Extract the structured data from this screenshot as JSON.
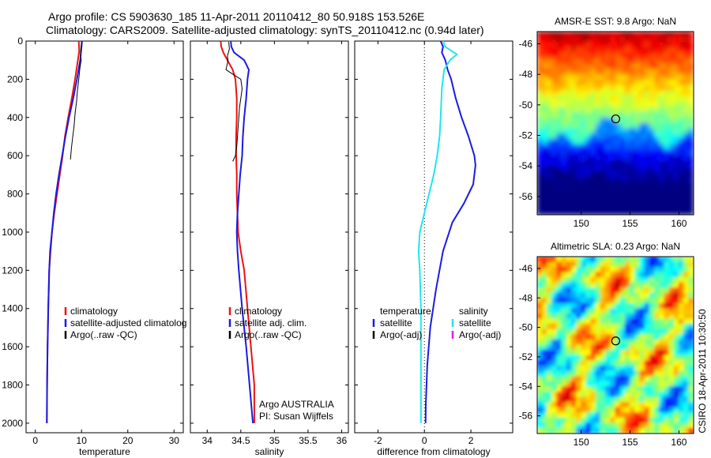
{
  "header": {
    "line1": "Argo profile: CS 5903630_185 11-Apr-2011 20110412_80 50.918S 153.526E",
    "line2": "Climatology: CARS2009. Satellite-adjusted climatology: synTS_20110412.nc (0.94d later)"
  },
  "side_label": "CSIRO 18-Apr-2011 10:30:50",
  "colors": {
    "red": "#ee1111",
    "blue": "#1a1ae6",
    "black": "#000000",
    "cyan": "#22e6e6",
    "magenta": "#e020e0"
  },
  "chart_data": [
    {
      "id": "temperature",
      "type": "line",
      "xlabel": "temperature",
      "ylabel": "",
      "xlim": [
        -2,
        32
      ],
      "ylim": [
        2050,
        0
      ],
      "xticks": [
        0,
        10,
        20,
        30
      ],
      "yticks": [
        0,
        200,
        400,
        600,
        800,
        1000,
        1200,
        1400,
        1600,
        1800,
        2000
      ],
      "series": [
        {
          "name": "climatology",
          "color": "red",
          "width": 2,
          "points": [
            [
              9.4,
              0
            ],
            [
              9.5,
              50
            ],
            [
              9.2,
              100
            ],
            [
              8.6,
              200
            ],
            [
              7.9,
              300
            ],
            [
              7.1,
              400
            ],
            [
              6.4,
              500
            ],
            [
              5.9,
              600
            ],
            [
              5.3,
              700
            ],
            [
              4.7,
              800
            ],
            [
              4.1,
              900
            ],
            [
              3.6,
              1000
            ],
            [
              3.3,
              1100
            ],
            [
              3.0,
              1200
            ],
            [
              2.8,
              1400
            ],
            [
              2.65,
              1600
            ],
            [
              2.55,
              1800
            ],
            [
              2.5,
              2000
            ]
          ]
        },
        {
          "name": "satellite-adjusted climatology",
          "color": "blue",
          "width": 2,
          "points": [
            [
              10.1,
              0
            ],
            [
              9.9,
              50
            ],
            [
              9.7,
              100
            ],
            [
              9.0,
              200
            ],
            [
              8.2,
              300
            ],
            [
              7.3,
              400
            ],
            [
              6.5,
              500
            ],
            [
              5.8,
              600
            ],
            [
              5.1,
              700
            ],
            [
              4.5,
              800
            ],
            [
              4.0,
              900
            ],
            [
              3.6,
              1000
            ],
            [
              3.2,
              1100
            ],
            [
              3.0,
              1200
            ],
            [
              2.8,
              1400
            ],
            [
              2.65,
              1600
            ],
            [
              2.55,
              1800
            ],
            [
              2.5,
              2000
            ]
          ]
        },
        {
          "name": "Argo(..raw -QC)",
          "color": "black",
          "width": 1,
          "points": [
            [
              10.0,
              5
            ],
            [
              9.9,
              30
            ],
            [
              9.8,
              60
            ],
            [
              9.9,
              100
            ],
            [
              9.6,
              150
            ],
            [
              9.4,
              200
            ],
            [
              9.1,
              260
            ],
            [
              8.9,
              320
            ],
            [
              8.6,
              380
            ],
            [
              8.4,
              440
            ],
            [
              8.1,
              500
            ],
            [
              7.8,
              560
            ],
            [
              7.6,
              620
            ]
          ]
        }
      ],
      "legend": {
        "position": "lower-right",
        "entries": [
          {
            "label": "climatology",
            "color": "red"
          },
          {
            "label": "satellite-adjusted climatolog",
            "color": "blue"
          },
          {
            "label": "Argo(..raw -QC)",
            "color": "black"
          }
        ]
      }
    },
    {
      "id": "salinity",
      "type": "line",
      "xlabel": "salinity",
      "ylabel": "",
      "xlim": [
        33.75,
        36.1
      ],
      "ylim": [
        2050,
        0
      ],
      "xticks": [
        34,
        34.5,
        35,
        35.5,
        36
      ],
      "xticklabels": [
        "34",
        "34.5",
        "35",
        "35.5",
        "36"
      ],
      "series": [
        {
          "name": "climatology",
          "color": "red",
          "width": 2,
          "points": [
            [
              34.2,
              0
            ],
            [
              34.21,
              30
            ],
            [
              34.24,
              60
            ],
            [
              34.3,
              100
            ],
            [
              34.38,
              150
            ],
            [
              34.42,
              200
            ],
            [
              34.44,
              300
            ],
            [
              34.44,
              400
            ],
            [
              34.43,
              500
            ],
            [
              34.43,
              600
            ],
            [
              34.44,
              700
            ],
            [
              34.44,
              800
            ],
            [
              34.45,
              900
            ],
            [
              34.46,
              1000
            ],
            [
              34.5,
              1100
            ],
            [
              34.55,
              1200
            ],
            [
              34.6,
              1400
            ],
            [
              34.65,
              1600
            ],
            [
              34.7,
              1800
            ],
            [
              34.7,
              2000
            ]
          ]
        },
        {
          "name": "satellite adj. clim.",
          "color": "blue",
          "width": 2,
          "points": [
            [
              34.35,
              0
            ],
            [
              34.36,
              30
            ],
            [
              34.4,
              60
            ],
            [
              34.55,
              100
            ],
            [
              34.62,
              150
            ],
            [
              34.6,
              200
            ],
            [
              34.58,
              300
            ],
            [
              34.55,
              400
            ],
            [
              34.53,
              500
            ],
            [
              34.52,
              600
            ],
            [
              34.49,
              700
            ],
            [
              34.47,
              800
            ],
            [
              34.45,
              900
            ],
            [
              34.44,
              1000
            ],
            [
              34.45,
              1100
            ],
            [
              34.47,
              1200
            ],
            [
              34.52,
              1400
            ],
            [
              34.58,
              1600
            ],
            [
              34.63,
              1800
            ],
            [
              34.68,
              2000
            ]
          ]
        },
        {
          "name": "Argo(..raw -QC)",
          "color": "black",
          "width": 1,
          "points": [
            [
              34.32,
              5
            ],
            [
              34.33,
              40
            ],
            [
              34.3,
              80
            ],
            [
              34.31,
              100
            ],
            [
              34.28,
              150
            ],
            [
              34.5,
              200
            ],
            [
              34.52,
              250
            ],
            [
              34.5,
              300
            ],
            [
              34.48,
              350
            ],
            [
              34.47,
              400
            ],
            [
              34.46,
              450
            ],
            [
              34.45,
              500
            ],
            [
              34.44,
              550
            ],
            [
              34.42,
              600
            ],
            [
              34.38,
              630
            ]
          ]
        }
      ],
      "legend": {
        "position": "lower-right",
        "entries": [
          {
            "label": "climatology",
            "color": "red"
          },
          {
            "label": "satellite adj. clim.",
            "color": "blue"
          },
          {
            "label": "Argo(..raw -QC)",
            "color": "black"
          }
        ]
      },
      "annotation": [
        "Argo AUSTRALIA",
        "PI: Susan Wijffels"
      ]
    },
    {
      "id": "difference",
      "type": "line",
      "xlabel": "difference from climatology",
      "ylabel": "",
      "xlim": [
        -3,
        3.8
      ],
      "ylim": [
        2050,
        0
      ],
      "xticks": [
        -2,
        0,
        2
      ],
      "zero_line": true,
      "series": [
        {
          "name": "temperature satellite",
          "color": "blue",
          "width": 2,
          "points": [
            [
              0.7,
              0
            ],
            [
              0.8,
              30
            ],
            [
              0.75,
              60
            ],
            [
              0.9,
              100
            ],
            [
              1.0,
              150
            ],
            [
              1.15,
              200
            ],
            [
              1.35,
              300
            ],
            [
              1.6,
              400
            ],
            [
              1.9,
              500
            ],
            [
              2.15,
              600
            ],
            [
              2.2,
              650
            ],
            [
              2.1,
              750
            ],
            [
              1.7,
              850
            ],
            [
              1.2,
              950
            ],
            [
              0.8,
              1100
            ],
            [
              0.5,
              1300
            ],
            [
              0.25,
              1500
            ],
            [
              0.12,
              1700
            ],
            [
              0.06,
              1900
            ],
            [
              0.05,
              2000
            ]
          ]
        },
        {
          "name": "salinity satellite",
          "color": "cyan",
          "width": 2,
          "points": [
            [
              0.8,
              0
            ],
            [
              0.9,
              30
            ],
            [
              1.4,
              70
            ],
            [
              1.1,
              100
            ],
            [
              0.85,
              150
            ],
            [
              0.75,
              250
            ],
            [
              0.7,
              400
            ],
            [
              0.65,
              500
            ],
            [
              0.55,
              600
            ],
            [
              0.4,
              700
            ],
            [
              0.2,
              800
            ],
            [
              0.0,
              900
            ],
            [
              -0.2,
              1000
            ],
            [
              -0.25,
              1100
            ],
            [
              -0.2,
              1200
            ],
            [
              -0.15,
              1400
            ],
            [
              -0.15,
              1600
            ],
            [
              -0.15,
              1800
            ],
            [
              -0.15,
              2000
            ]
          ]
        }
      ],
      "legend": {
        "position": "lower-center",
        "columns": [
          {
            "heading": "temperature",
            "entries": [
              {
                "label": "satellite",
                "color": "blue"
              },
              {
                "label": "Argo(-adj)",
                "color": "black"
              }
            ]
          },
          {
            "heading": "salinity",
            "entries": [
              {
                "label": "satellite",
                "color": "cyan"
              },
              {
                "label": "Argo(-adj)",
                "color": "magenta"
              }
            ]
          }
        ]
      }
    },
    {
      "id": "sst-map",
      "type": "heatmap",
      "title": "AMSR-E SST: 9.8 Argo: NaN",
      "xlim": [
        145.5,
        161.5
      ],
      "ylim": [
        -57.2,
        -45.2
      ],
      "xticks": [
        150,
        155,
        160
      ],
      "yticks": [
        -46,
        -48,
        -50,
        -52,
        -54,
        -56
      ],
      "marker": {
        "lon": 153.53,
        "lat": -50.92
      }
    },
    {
      "id": "sla-map",
      "type": "heatmap",
      "title": "Altimetric SLA: 0.23 Argo: NaN",
      "xlim": [
        145.5,
        161.5
      ],
      "ylim": [
        -57.2,
        -45.2
      ],
      "xticks": [
        150,
        155,
        160
      ],
      "yticks": [
        -46,
        -48,
        -50,
        -52,
        -54,
        -56
      ],
      "marker": {
        "lon": 153.53,
        "lat": -50.92
      }
    }
  ]
}
